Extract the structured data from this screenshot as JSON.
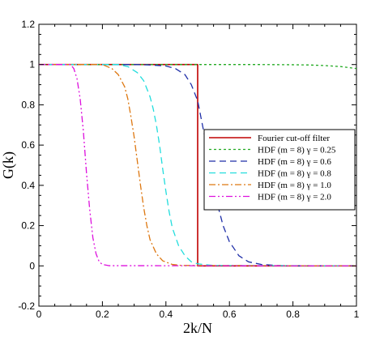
{
  "chart_data": {
    "type": "line",
    "title": "",
    "xlabel": "2k/N",
    "ylabel": "G(k)",
    "xlim": [
      0,
      1
    ],
    "ylim": [
      -0.2,
      1.2
    ],
    "x_ticks": [
      0,
      0.2,
      0.4,
      0.6,
      0.8,
      1
    ],
    "x_tick_labels": [
      "0",
      "0.2",
      "0.4",
      "0.6",
      "0.8",
      "1"
    ],
    "y_ticks": [
      -0.2,
      0,
      0.2,
      0.4,
      0.6,
      0.8,
      1,
      1.2
    ],
    "y_tick_labels": [
      "-0.2",
      "0",
      "0.2",
      "0.4",
      "0.6",
      "0.8",
      "1",
      "1.2"
    ],
    "grid": false,
    "legend_position": "center-right",
    "series": [
      {
        "name": "Fourier cut-off filter",
        "color": "#c00000",
        "dash": "solid",
        "x": [
          0,
          0.5,
          0.5,
          1
        ],
        "y": [
          1,
          1,
          0,
          0
        ]
      },
      {
        "name": "HDF (m = 8) γ = 0.25",
        "color": "#22aa22",
        "dash": "short-dash",
        "x": [
          0,
          0.1,
          0.2,
          0.3,
          0.4,
          0.5,
          0.6,
          0.7,
          0.8,
          0.85,
          0.9,
          0.95,
          1.0
        ],
        "y": [
          1,
          1,
          1,
          1,
          1,
          1,
          1,
          1,
          0.999,
          0.998,
          0.995,
          0.99,
          0.98
        ]
      },
      {
        "name": "HDF (m = 8) γ = 0.6",
        "color": "#1f2fa8",
        "dash": "long-dash",
        "x": [
          0,
          0.3,
          0.35,
          0.4,
          0.43,
          0.46,
          0.48,
          0.5,
          0.52,
          0.54,
          0.56,
          0.58,
          0.6,
          0.63,
          0.66,
          0.7,
          0.75,
          0.8,
          1
        ],
        "y": [
          1,
          1,
          0.998,
          0.993,
          0.98,
          0.95,
          0.9,
          0.82,
          0.66,
          0.48,
          0.32,
          0.2,
          0.12,
          0.05,
          0.02,
          0.007,
          0.002,
          0,
          0
        ]
      },
      {
        "name": "HDF (m = 8) γ = 0.8",
        "color": "#22dddd",
        "dash": "long-dash",
        "x": [
          0,
          0.25,
          0.28,
          0.31,
          0.33,
          0.35,
          0.36,
          0.37,
          0.38,
          0.39,
          0.4,
          0.41,
          0.42,
          0.44,
          0.46,
          0.48,
          0.5,
          0.55,
          1
        ],
        "y": [
          1,
          1,
          0.99,
          0.96,
          0.92,
          0.84,
          0.78,
          0.7,
          0.6,
          0.48,
          0.37,
          0.27,
          0.19,
          0.1,
          0.05,
          0.02,
          0.01,
          0.002,
          0
        ]
      },
      {
        "name": "HDF (m = 8) γ = 1.0",
        "color": "#dd7711",
        "dash": "dash-dot",
        "x": [
          0,
          0.2,
          0.23,
          0.25,
          0.27,
          0.28,
          0.29,
          0.3,
          0.31,
          0.32,
          0.33,
          0.34,
          0.35,
          0.37,
          0.39,
          0.42,
          0.45,
          1
        ],
        "y": [
          1,
          1,
          0.98,
          0.95,
          0.89,
          0.83,
          0.74,
          0.64,
          0.52,
          0.4,
          0.29,
          0.2,
          0.13,
          0.06,
          0.025,
          0.007,
          0.002,
          0
        ]
      },
      {
        "name": "HDF (m = 8) γ = 2.0",
        "color": "#dd11dd",
        "dash": "dash-dot-dot",
        "x": [
          0,
          0.1,
          0.11,
          0.12,
          0.13,
          0.14,
          0.15,
          0.16,
          0.17,
          0.18,
          0.19,
          0.2,
          0.22,
          1
        ],
        "y": [
          1,
          1,
          0.98,
          0.93,
          0.83,
          0.67,
          0.46,
          0.28,
          0.14,
          0.06,
          0.02,
          0.007,
          0.001,
          0
        ]
      }
    ]
  }
}
